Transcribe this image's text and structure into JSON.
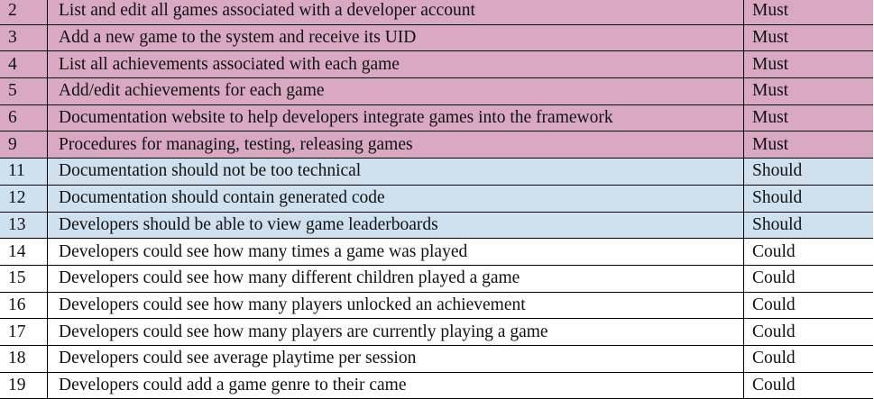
{
  "colors": {
    "must": "#d9a8c3",
    "should": "#cfe0ef",
    "could": "#ffffff"
  },
  "requirements": [
    {
      "id": "2",
      "description": "List and edit all games associated with a developer account",
      "priority": "Must"
    },
    {
      "id": "3",
      "description": "Add a new game to the system and receive its UID",
      "priority": "Must"
    },
    {
      "id": "4",
      "description": "List all achievements associated with each game",
      "priority": "Must"
    },
    {
      "id": "5",
      "description": "Add/edit achievements for each game",
      "priority": "Must"
    },
    {
      "id": "6",
      "description": "Documentation website to help developers integrate games into the framework",
      "priority": "Must"
    },
    {
      "id": "9",
      "description": "Procedures for managing, testing, releasing games",
      "priority": "Must"
    },
    {
      "id": "11",
      "description": "Documentation should not be too technical",
      "priority": "Should"
    },
    {
      "id": "12",
      "description": "Documentation should contain generated code",
      "priority": "Should"
    },
    {
      "id": "13",
      "description": "Developers should be able to view game leaderboards",
      "priority": "Should"
    },
    {
      "id": "14",
      "description": "Developers could see how many times a game was played",
      "priority": "Could"
    },
    {
      "id": "15",
      "description": "Developers could see how many different children played a game",
      "priority": "Could"
    },
    {
      "id": "16",
      "description": "Developers could see how many players unlocked an achievement",
      "priority": "Could"
    },
    {
      "id": "17",
      "description": "Developers could see how many players are currently playing a game",
      "priority": "Could"
    },
    {
      "id": "18",
      "description": "Developers could see average playtime per session",
      "priority": "Could"
    },
    {
      "id": "19",
      "description": "Developers could add a game genre to their came",
      "priority": "Could"
    }
  ]
}
